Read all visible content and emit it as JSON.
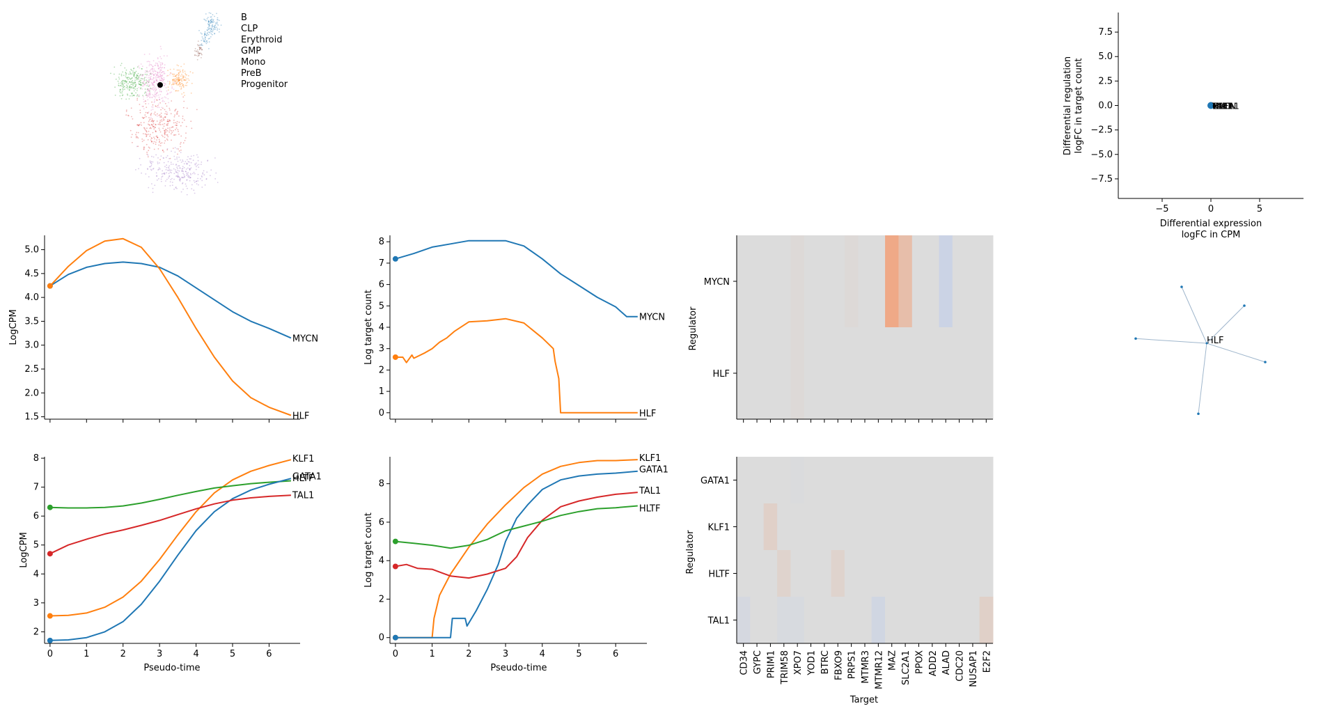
{
  "colors": {
    "blue": "#1f77b4",
    "orange": "#ff7f0e",
    "green": "#2ca02c",
    "red": "#d62728",
    "purple": "#9467bd",
    "brown": "#8c564b",
    "pink": "#e377c2",
    "axis": "#000000",
    "heat_neutral": "#dcdcdc"
  },
  "chart_data": [
    {
      "id": "umap",
      "type": "scatter",
      "title": "",
      "legend": [
        "B",
        "CLP",
        "Erythroid",
        "GMP",
        "Mono",
        "PreB",
        "Progenitor"
      ],
      "legend_colors": [
        "#1f77b4",
        "#ff7f0e",
        "#2ca02c",
        "#d62728",
        "#9467bd",
        "#8c564b",
        "#e377c2"
      ],
      "legend_position": "right",
      "marker": "selected cell shown as black dot in Progenitor cluster"
    },
    {
      "id": "diffreg",
      "type": "scatter",
      "xlabel": [
        "Differential expression",
        "logFC in CPM"
      ],
      "ylabel": [
        "Differential regulation",
        "logFC in target count"
      ],
      "xlim": [
        -9.5,
        9.5
      ],
      "ylim": [
        -9.5,
        9.5
      ],
      "xticks": [
        -5,
        0,
        5
      ],
      "xtick_labels": [
        "−5",
        "0",
        "5"
      ],
      "yticks": [
        7.5,
        5.0,
        2.5,
        0.0,
        -2.5,
        -5.0,
        -7.5
      ],
      "ytick_labels": [
        "7.5",
        "5.0",
        "2.5",
        "0.0",
        "−2.5",
        "−5.0",
        "−7.5"
      ],
      "points": [
        {
          "x": 0,
          "y": 0
        }
      ],
      "point_labels": [
        "MYCN",
        "HLF",
        "GATA1",
        "KLF1",
        "TAL1",
        "HLTF"
      ]
    },
    {
      "id": "expr_top",
      "type": "line",
      "xlabel": "",
      "ylabel": "LogCPM",
      "xlim": [
        -0.15,
        6.85
      ],
      "ylim": [
        1.45,
        5.3
      ],
      "xticks": [
        0,
        1,
        2,
        3,
        4,
        5,
        6
      ],
      "yticks": [
        1.5,
        2.0,
        2.5,
        3.0,
        3.5,
        4.0,
        4.5,
        5.0
      ],
      "ytick_labels": [
        "1.5",
        "2.0",
        "2.5",
        "3.0",
        "3.5",
        "4.0",
        "4.5",
        "5.0"
      ],
      "series": [
        {
          "name": "MYCN",
          "color": "#1f77b4",
          "x": [
            0,
            0.5,
            1,
            1.5,
            2,
            2.5,
            3,
            3.5,
            4,
            4.5,
            5,
            5.5,
            6,
            6.6
          ],
          "y": [
            4.24,
            4.48,
            4.63,
            4.71,
            4.74,
            4.71,
            4.63,
            4.45,
            4.2,
            3.95,
            3.7,
            3.5,
            3.35,
            3.15
          ]
        },
        {
          "name": "HLF",
          "color": "#ff7f0e",
          "x": [
            0,
            0.5,
            1,
            1.5,
            2,
            2.5,
            3,
            3.5,
            4,
            4.5,
            5,
            5.5,
            6,
            6.6
          ],
          "y": [
            4.24,
            4.65,
            4.98,
            5.18,
            5.23,
            5.05,
            4.6,
            4.0,
            3.35,
            2.75,
            2.25,
            1.9,
            1.7,
            1.53
          ]
        }
      ]
    },
    {
      "id": "count_top",
      "type": "line",
      "xlabel": "",
      "ylabel": "Log target count",
      "xlim": [
        -0.15,
        6.85
      ],
      "ylim": [
        -0.3,
        8.3
      ],
      "xticks": [
        0,
        1,
        2,
        3,
        4,
        5,
        6
      ],
      "yticks": [
        0,
        1,
        2,
        3,
        4,
        5,
        6,
        7,
        8
      ],
      "ytick_labels": [
        "0",
        "1",
        "2",
        "3",
        "4",
        "5",
        "6",
        "7",
        "8"
      ],
      "series": [
        {
          "name": "MYCN",
          "color": "#1f77b4",
          "x": [
            0,
            0.5,
            1,
            1.5,
            2,
            2.5,
            3,
            3.5,
            4,
            4.5,
            5,
            5.5,
            6,
            6.3,
            6.6
          ],
          "y": [
            7.2,
            7.45,
            7.75,
            7.9,
            8.05,
            8.05,
            8.05,
            7.8,
            7.2,
            6.5,
            5.95,
            5.4,
            4.95,
            4.5,
            4.5
          ]
        },
        {
          "name": "HLF",
          "color": "#ff7f0e",
          "x": [
            0,
            0.2,
            0.3,
            0.45,
            0.5,
            0.8,
            1.0,
            1.2,
            1.4,
            1.6,
            2.0,
            2.5,
            3.0,
            3.5,
            4.0,
            4.3,
            4.35,
            4.45,
            4.5,
            5.0,
            6.6
          ],
          "y": [
            2.6,
            2.6,
            2.35,
            2.7,
            2.55,
            2.8,
            3.0,
            3.3,
            3.5,
            3.8,
            4.25,
            4.3,
            4.4,
            4.2,
            3.5,
            3.0,
            2.4,
            1.6,
            0.0,
            0.0,
            0.0
          ]
        }
      ]
    },
    {
      "id": "heat_top",
      "type": "heatmap",
      "xlabel": "",
      "ylabel": "Regulator",
      "rows": [
        "MYCN",
        "HLF"
      ],
      "columns": [
        "CD34",
        "GYPC",
        "PRIM1",
        "TRIM58",
        "XPO7",
        "YOD1",
        "BTRC",
        "FBXO9",
        "PRPS1",
        "MTMR3",
        "MTMR12",
        "MAZ",
        "SLC2A1",
        "PPOX",
        "ADD2",
        "ALAD",
        "CDC20",
        "NUSAP1",
        "E2F2"
      ],
      "values": [
        [
          0,
          0,
          0,
          0,
          0.05,
          0,
          0,
          0,
          0.05,
          0,
          0,
          0.85,
          0.5,
          0,
          0,
          -0.35,
          0,
          0,
          0
        ],
        [
          0,
          0,
          0,
          0,
          0.05,
          0,
          0,
          0,
          0,
          0,
          0,
          0,
          0,
          0,
          0,
          0,
          0,
          0,
          0
        ]
      ]
    },
    {
      "id": "expr_bottom",
      "type": "line",
      "xlabel": "Pseudo-time",
      "ylabel": "LogCPM",
      "xlim": [
        -0.15,
        6.85
      ],
      "ylim": [
        1.6,
        8.05
      ],
      "xticks": [
        0,
        1,
        2,
        3,
        4,
        5,
        6
      ],
      "xtick_labels": [
        "0",
        "1",
        "2",
        "3",
        "4",
        "5",
        "6"
      ],
      "yticks": [
        2,
        3,
        4,
        5,
        6,
        7,
        8
      ],
      "ytick_labels": [
        "2",
        "3",
        "4",
        "5",
        "6",
        "7",
        "8"
      ],
      "series": [
        {
          "name": "KLF1",
          "color": "#ff7f0e",
          "x": [
            0,
            0.5,
            1,
            1.5,
            2,
            2.5,
            3,
            3.5,
            4,
            4.5,
            5,
            5.5,
            6,
            6.6
          ],
          "y": [
            2.55,
            2.57,
            2.65,
            2.85,
            3.2,
            3.75,
            4.5,
            5.35,
            6.15,
            6.8,
            7.25,
            7.55,
            7.75,
            7.95
          ]
        },
        {
          "name": "GATA1",
          "color": "#2ca02c",
          "x": [
            0,
            0.5,
            1,
            1.5,
            2,
            2.5,
            3,
            3.5,
            4,
            4.5,
            5,
            5.5,
            6,
            6.6
          ],
          "y": [
            6.3,
            6.28,
            6.28,
            6.3,
            6.35,
            6.45,
            6.58,
            6.72,
            6.85,
            6.97,
            7.05,
            7.12,
            7.17,
            7.22
          ]
        },
        {
          "name": "HLTF",
          "color": "#1f77b4",
          "x": [
            0,
            0.5,
            1,
            1.5,
            2,
            2.5,
            3,
            3.5,
            4,
            4.5,
            5,
            5.5,
            6,
            6.6
          ],
          "y": [
            1.7,
            1.72,
            1.8,
            2.0,
            2.35,
            2.95,
            3.75,
            4.65,
            5.5,
            6.15,
            6.6,
            6.9,
            7.1,
            7.3
          ]
        },
        {
          "name": "TAL1",
          "color": "#d62728",
          "x": [
            0,
            0.5,
            1,
            1.5,
            2,
            2.5,
            3,
            3.5,
            4,
            4.5,
            5,
            5.5,
            6,
            6.6
          ],
          "y": [
            4.7,
            5.0,
            5.2,
            5.38,
            5.52,
            5.68,
            5.85,
            6.05,
            6.25,
            6.42,
            6.55,
            6.63,
            6.68,
            6.72
          ]
        }
      ],
      "line_labels": [
        "KLF1",
        "GATA1",
        "HLTF",
        "TAL1"
      ]
    },
    {
      "id": "count_bottom",
      "type": "line",
      "xlabel": "Pseudo-time",
      "ylabel": "Log target count",
      "xlim": [
        -0.15,
        6.85
      ],
      "ylim": [
        -0.3,
        9.4
      ],
      "xticks": [
        0,
        1,
        2,
        3,
        4,
        5,
        6
      ],
      "xtick_labels": [
        "0",
        "1",
        "2",
        "3",
        "4",
        "5",
        "6"
      ],
      "yticks": [
        0,
        2,
        4,
        6,
        8
      ],
      "ytick_labels": [
        "0",
        "2",
        "4",
        "6",
        "8"
      ],
      "series": [
        {
          "name": "KLF1",
          "color": "#ff7f0e",
          "x": [
            0,
            1.0,
            1.05,
            1.2,
            1.5,
            2.0,
            2.5,
            3.0,
            3.5,
            4.0,
            4.5,
            5.0,
            5.5,
            6.0,
            6.6
          ],
          "y": [
            0,
            0,
            1.0,
            2.2,
            3.3,
            4.7,
            5.9,
            6.9,
            7.8,
            8.5,
            8.9,
            9.1,
            9.2,
            9.2,
            9.25
          ]
        },
        {
          "name": "GATA1",
          "color": "#1f77b4",
          "x": [
            0,
            1.5,
            1.55,
            1.9,
            1.95,
            2.2,
            2.5,
            2.8,
            3.0,
            3.3,
            3.6,
            4.0,
            4.5,
            5.0,
            5.5,
            6.0,
            6.6
          ],
          "y": [
            0,
            0,
            1.0,
            1.0,
            0.6,
            1.4,
            2.5,
            3.8,
            5.0,
            6.2,
            6.9,
            7.7,
            8.2,
            8.4,
            8.5,
            8.55,
            8.65
          ]
        },
        {
          "name": "TAL1",
          "color": "#d62728",
          "x": [
            0,
            0.3,
            0.6,
            1.0,
            1.5,
            2.0,
            2.5,
            3.0,
            3.3,
            3.6,
            4.0,
            4.5,
            5.0,
            5.5,
            6.0,
            6.6
          ],
          "y": [
            3.7,
            3.8,
            3.6,
            3.55,
            3.2,
            3.1,
            3.3,
            3.6,
            4.2,
            5.2,
            6.1,
            6.8,
            7.1,
            7.3,
            7.45,
            7.55
          ]
        },
        {
          "name": "HLTF",
          "color": "#2ca02c",
          "x": [
            0,
            0.5,
            1.0,
            1.5,
            2.0,
            2.5,
            3.0,
            3.5,
            4.0,
            4.5,
            5.0,
            5.5,
            6.0,
            6.6
          ],
          "y": [
            5.0,
            4.9,
            4.8,
            4.65,
            4.8,
            5.1,
            5.55,
            5.8,
            6.05,
            6.35,
            6.55,
            6.7,
            6.75,
            6.85
          ]
        }
      ],
      "line_labels": [
        "KLF1",
        "GATA1",
        "TAL1",
        "HLTF"
      ]
    },
    {
      "id": "heat_bottom",
      "type": "heatmap",
      "xlabel": "Target",
      "ylabel": "Regulator",
      "rows": [
        "GATA1",
        "KLF1",
        "HLTF",
        "TAL1"
      ],
      "columns": [
        "CD34",
        "GYPC",
        "PRIM1",
        "TRIM58",
        "XPO7",
        "YOD1",
        "BTRC",
        "FBXO9",
        "PRPS1",
        "MTMR3",
        "MTMR12",
        "MAZ",
        "SLC2A1",
        "PPOX",
        "ADD2",
        "ALAD",
        "CDC20",
        "NUSAP1",
        "E2F2"
      ],
      "values": [
        [
          0,
          0,
          0,
          0,
          -0.05,
          0,
          0,
          0,
          0,
          0,
          0,
          0,
          0,
          0,
          0,
          0,
          0,
          0,
          0
        ],
        [
          0,
          0,
          0.2,
          0,
          0,
          0,
          0,
          0,
          0,
          0,
          0,
          0,
          0,
          0,
          0,
          0,
          0,
          0,
          0
        ],
        [
          0,
          0,
          0,
          0.15,
          0,
          0,
          0,
          0.15,
          0,
          0,
          0,
          0,
          0,
          0,
          0,
          0,
          0,
          0,
          0
        ],
        [
          -0.15,
          0,
          0,
          -0.1,
          -0.1,
          0,
          0,
          0,
          0,
          0,
          -0.25,
          0,
          0,
          0,
          0,
          0,
          0,
          0,
          0.2
        ]
      ]
    },
    {
      "id": "network",
      "type": "scatter",
      "center_label": "HLF",
      "nodes": [
        {
          "x": 0,
          "y": 0
        },
        {
          "x": -0.3,
          "y": 0.6
        },
        {
          "x": 0.45,
          "y": 0.4
        },
        {
          "x": -0.85,
          "y": 0.05
        },
        {
          "x": 0.7,
          "y": -0.2
        },
        {
          "x": -0.1,
          "y": -0.75
        }
      ]
    }
  ]
}
